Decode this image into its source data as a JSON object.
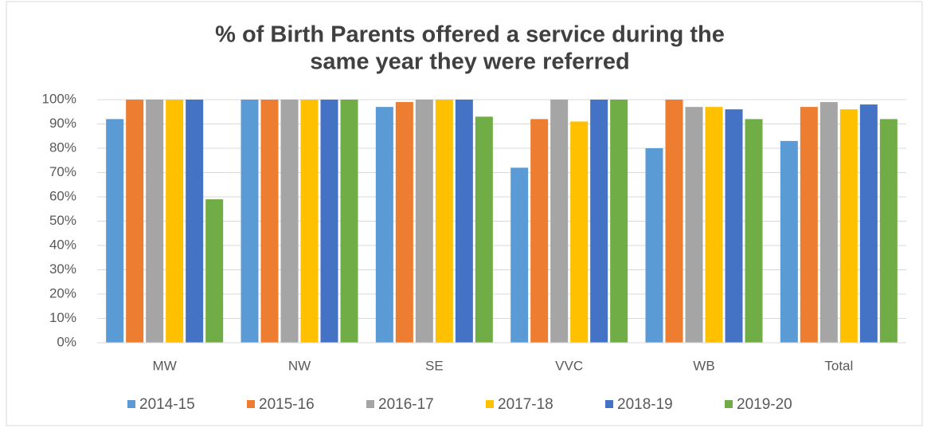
{
  "chart_data": {
    "type": "bar",
    "title": [
      "% of Birth Parents offered a service during the",
      "same year they were referred"
    ],
    "categories": [
      "MW",
      "NW",
      "SE",
      "VVC",
      "WB",
      "Total"
    ],
    "series": [
      {
        "name": "2014-15",
        "color": "#5b9bd5",
        "values": [
          92,
          100,
          97,
          72,
          80,
          83
        ]
      },
      {
        "name": "2015-16",
        "color": "#ed7d31",
        "values": [
          100,
          100,
          99,
          92,
          100,
          97
        ]
      },
      {
        "name": "2016-17",
        "color": "#a5a5a5",
        "values": [
          100,
          100,
          100,
          100,
          97,
          99
        ]
      },
      {
        "name": "2017-18",
        "color": "#ffc000",
        "values": [
          100,
          100,
          100,
          91,
          97,
          96
        ]
      },
      {
        "name": "2018-19",
        "color": "#4472c4",
        "values": [
          100,
          100,
          100,
          100,
          96,
          98
        ]
      },
      {
        "name": "2019-20",
        "color": "#70ad47",
        "values": [
          59,
          100,
          93,
          100,
          92,
          92
        ]
      }
    ],
    "ylim": [
      0,
      100
    ],
    "yticks": [
      {
        "value": 0,
        "label": "0%"
      },
      {
        "value": 10,
        "label": "10%"
      },
      {
        "value": 20,
        "label": "20%"
      },
      {
        "value": 30,
        "label": "30%"
      },
      {
        "value": 40,
        "label": "40%"
      },
      {
        "value": 50,
        "label": "50%"
      },
      {
        "value": 60,
        "label": "60%"
      },
      {
        "value": 70,
        "label": "70%"
      },
      {
        "value": 80,
        "label": "80%"
      },
      {
        "value": 90,
        "label": "90%"
      },
      {
        "value": 100,
        "label": "100%"
      }
    ],
    "grid": true,
    "legend": "bottom"
  }
}
